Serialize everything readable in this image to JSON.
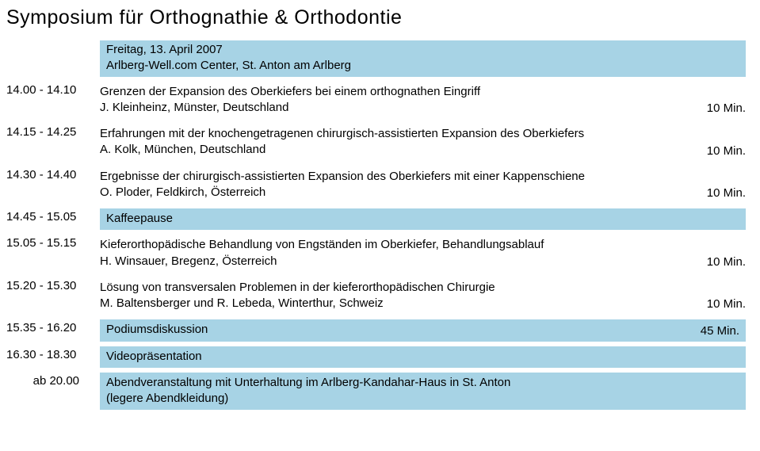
{
  "title": "Symposium für Orthognathie & Orthodontie",
  "bar_color": "#a7d3e5",
  "background_color": "#ffffff",
  "text_color": "#000000",
  "title_fontsize": 25,
  "body_fontsize": 15,
  "rows": [
    {
      "time": "",
      "highlight": true,
      "lines": [
        "Freitag, 13. April 2007",
        "Arlberg-Well.com Center, St. Anton am Arlberg"
      ],
      "duration": ""
    },
    {
      "time": "14.00 - 14.10",
      "highlight": false,
      "lines": [
        "Grenzen der Expansion des Oberkiefers bei einem orthognathen Eingriff",
        "J. Kleinheinz, Münster, Deutschland"
      ],
      "duration": "10 Min."
    },
    {
      "time": "14.15 - 14.25",
      "highlight": false,
      "lines": [
        "Erfahrungen mit der knochengetragenen chirurgisch-assistierten Expansion des Oberkiefers",
        "A. Kolk, München, Deutschland"
      ],
      "duration": "10 Min."
    },
    {
      "time": "14.30 - 14.40",
      "highlight": false,
      "lines": [
        "Ergebnisse der chirurgisch-assistierten Expansion des Oberkiefers mit einer Kappenschiene",
        "O. Ploder, Feldkirch, Österreich"
      ],
      "duration": "10 Min."
    },
    {
      "time": "14.45 - 15.05",
      "highlight": true,
      "lines": [
        "Kaffeepause"
      ],
      "duration": ""
    },
    {
      "time": "15.05 - 15.15",
      "highlight": false,
      "lines": [
        "Kieferorthopädische Behandlung von Engständen im Oberkiefer, Behandlungsablauf",
        "H. Winsauer, Bregenz, Österreich"
      ],
      "duration": "10 Min."
    },
    {
      "time": "15.20 - 15.30",
      "highlight": false,
      "lines": [
        "Lösung von transversalen Problemen in der kieferorthopädischen Chirurgie",
        "M. Baltensberger und R. Lebeda, Winterthur, Schweiz"
      ],
      "duration": "10 Min."
    },
    {
      "time": "15.35 - 16.20",
      "highlight": true,
      "lines": [
        "Podiumsdiskussion"
      ],
      "duration": "45 Min."
    },
    {
      "time": "16.30 - 18.30",
      "highlight": true,
      "lines": [
        "Videopräsentation"
      ],
      "duration": ""
    },
    {
      "time": "ab 20.00",
      "highlight": true,
      "indent": true,
      "lines": [
        "Abendveranstaltung mit Unterhaltung im Arlberg-Kandahar-Haus in St. Anton",
        "(legere Abendkleidung)"
      ],
      "duration": ""
    }
  ]
}
